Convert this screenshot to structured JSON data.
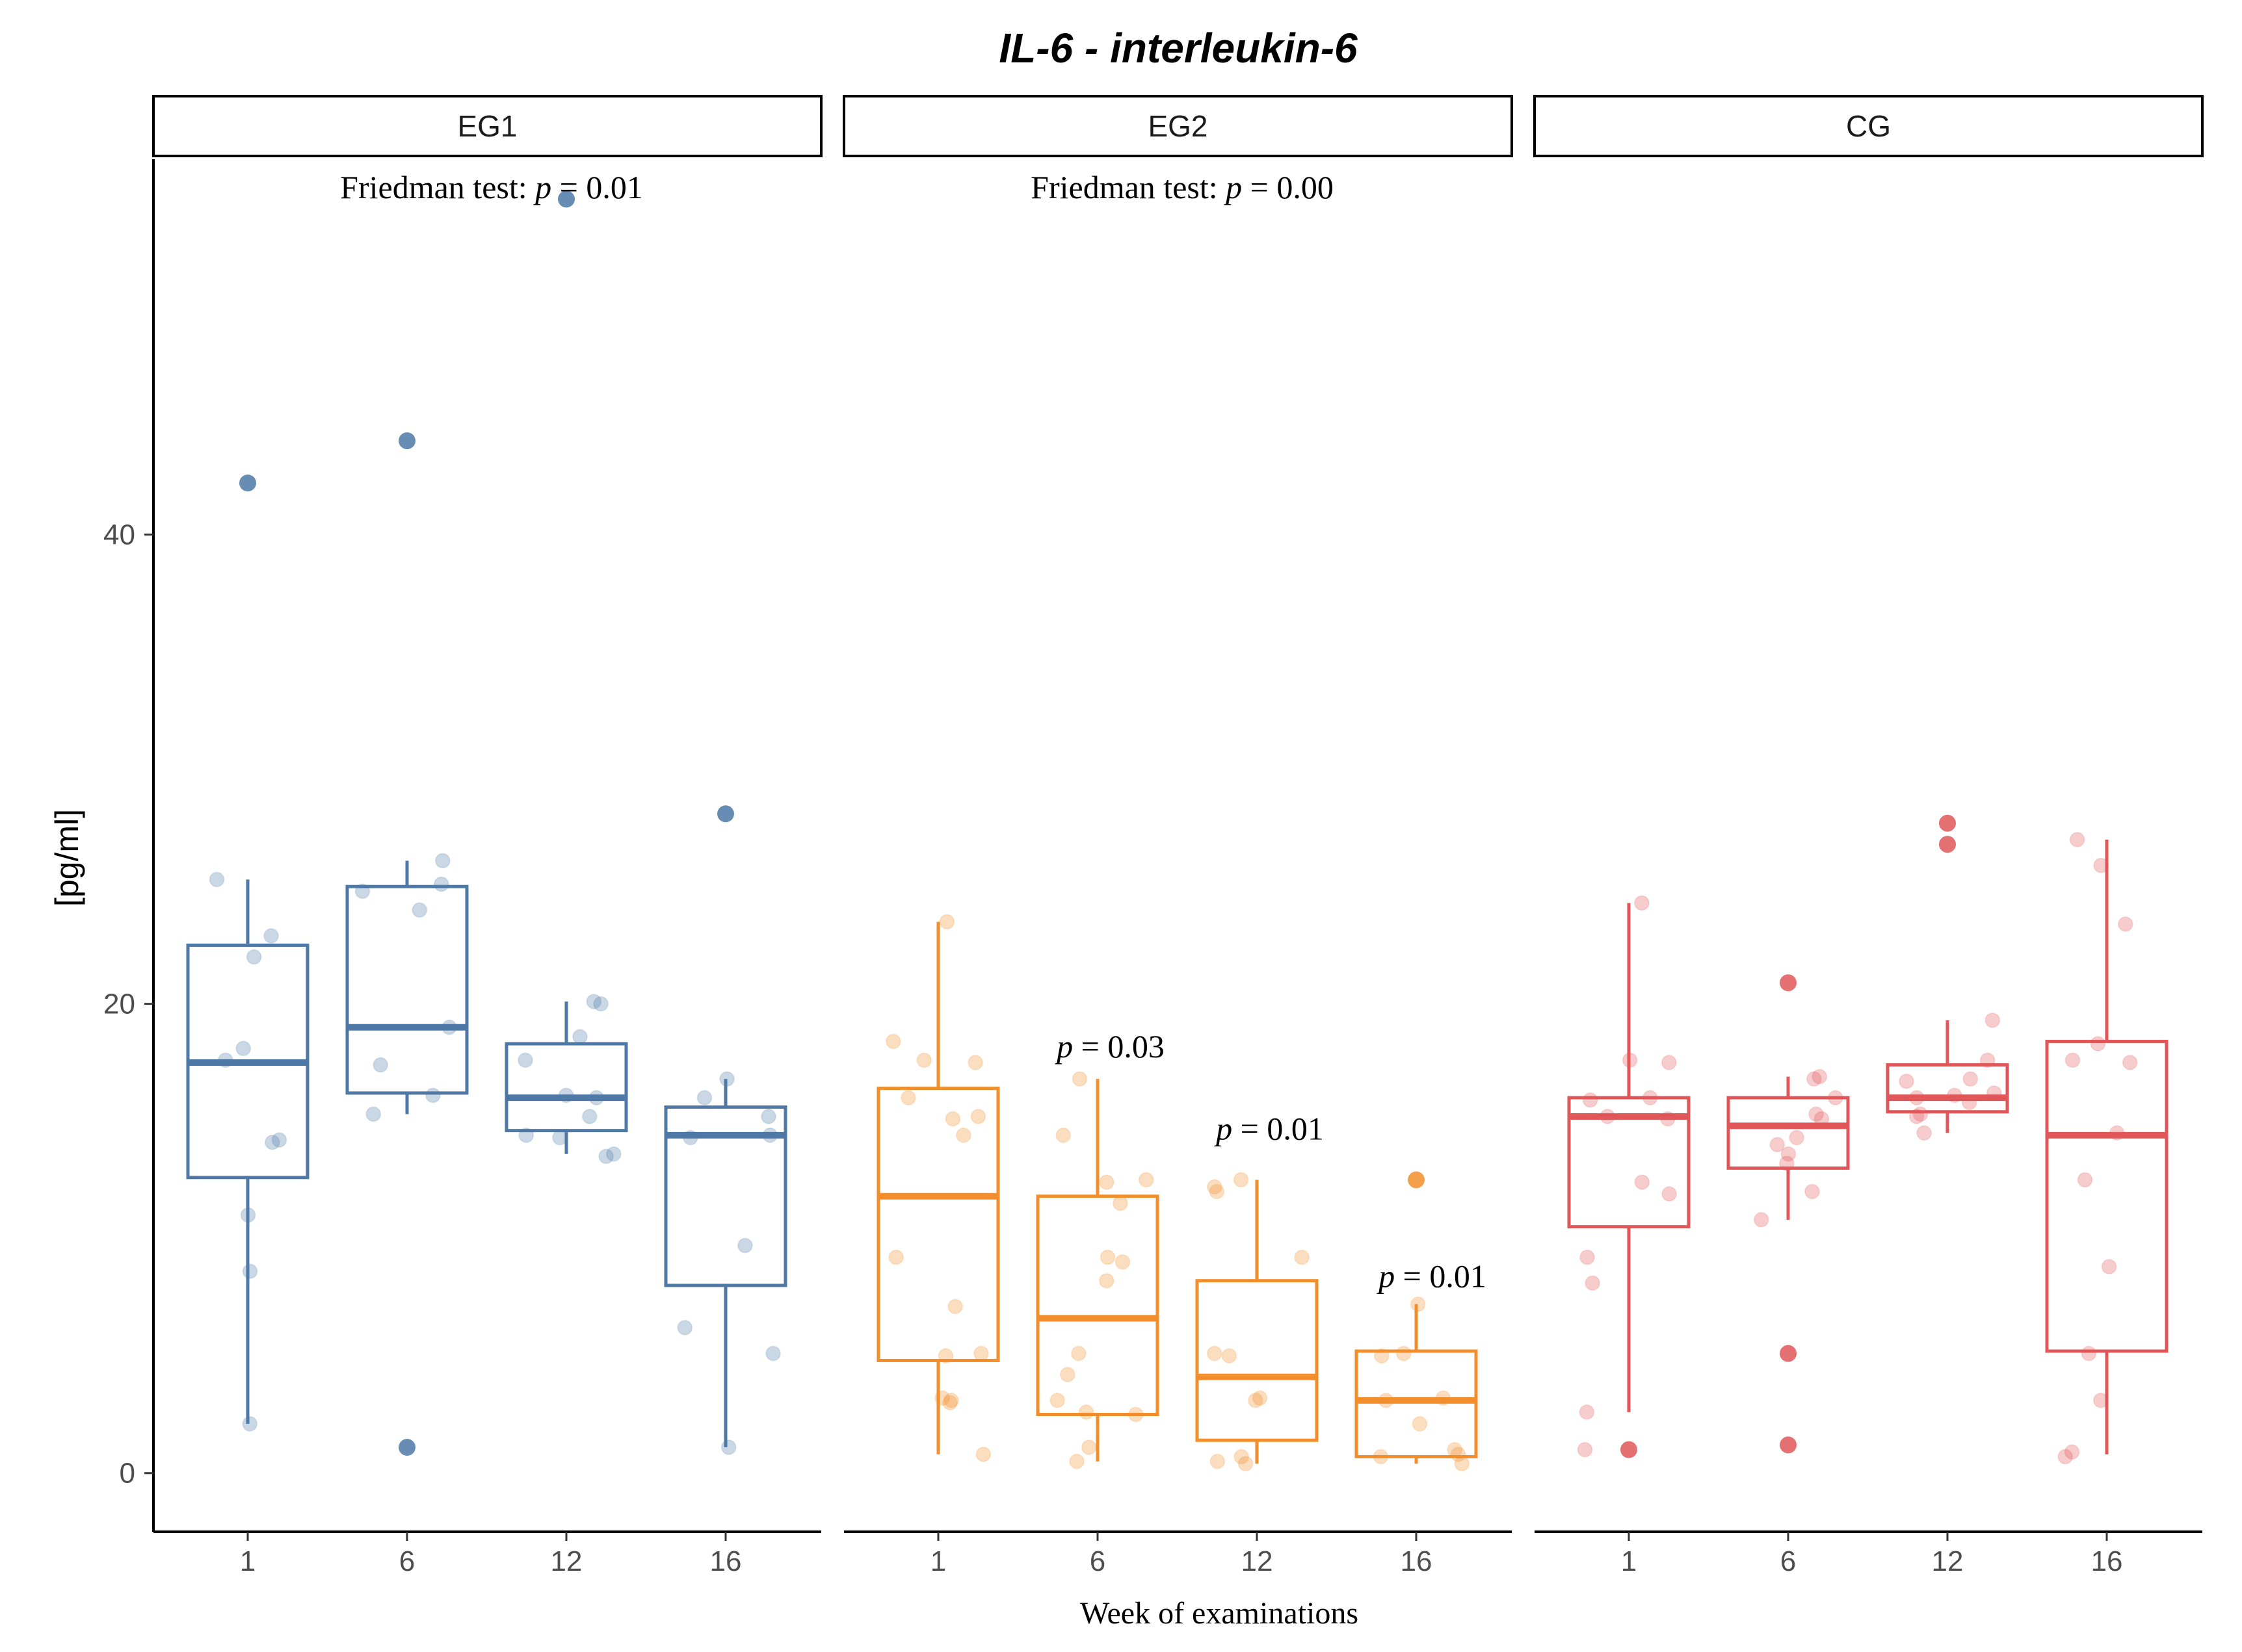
{
  "chart_data": {
    "type": "boxplot",
    "title": "IL-6 - interleukin-6",
    "xlabel": "Week of examinations",
    "ylabel": "[pg/ml]",
    "ylim": [
      -2.5,
      56
    ],
    "yticks": [
      0,
      20,
      40
    ],
    "categories": [
      "1",
      "6",
      "12",
      "16"
    ],
    "stat_prefix": "Friedman test: ",
    "p_symbol": "p",
    "p_equals": " = ",
    "panels": [
      {
        "name": "EG1",
        "color": "#4e79a7",
        "friedman_p": "0.01",
        "boxes": [
          {
            "week": "1",
            "q1": 12.6,
            "median": 17.5,
            "q3": 22.5,
            "whisker_low": 2.1,
            "whisker_high": 25.3
          },
          {
            "week": "6",
            "q1": 16.2,
            "median": 19.0,
            "q3": 25.0,
            "whisker_low": 15.3,
            "whisker_high": 26.1
          },
          {
            "week": "12",
            "q1": 14.6,
            "median": 16.0,
            "q3": 18.3,
            "whisker_low": 13.6,
            "whisker_high": 20.1
          },
          {
            "week": "16",
            "q1": 8.0,
            "median": 14.4,
            "q3": 15.6,
            "whisker_low": 1.1,
            "whisker_high": 16.8
          }
        ],
        "outliers": [
          {
            "week": "1",
            "values": [
              42.2
            ]
          },
          {
            "week": "6",
            "values": [
              44.0,
              1.1
            ]
          },
          {
            "week": "12",
            "values": [
              54.3
            ]
          },
          {
            "week": "16",
            "values": [
              28.1
            ]
          }
        ],
        "points": [
          {
            "week": "1",
            "values": [
              25.3,
              22.9,
              22.0,
              18.1,
              17.6,
              14.2,
              14.1,
              11.0,
              8.6,
              2.1
            ]
          },
          {
            "week": "6",
            "values": [
              26.1,
              25.1,
              24.8,
              24.0,
              19.0,
              17.4,
              16.1,
              15.3
            ]
          },
          {
            "week": "12",
            "values": [
              20.1,
              20.0,
              18.6,
              17.6,
              16.1,
              16.0,
              15.2,
              14.4,
              14.3,
              13.6,
              13.5
            ]
          },
          {
            "week": "16",
            "values": [
              16.8,
              16.0,
              15.2,
              14.4,
              14.3,
              9.7,
              6.2,
              5.1,
              1.1
            ]
          }
        ],
        "pairwise": []
      },
      {
        "name": "EG2",
        "color": "#f28e2b",
        "friedman_p": "0.00",
        "boxes": [
          {
            "week": "1",
            "q1": 4.8,
            "median": 11.8,
            "q3": 16.4,
            "whisker_low": 0.8,
            "whisker_high": 23.5
          },
          {
            "week": "6",
            "q1": 2.5,
            "median": 6.6,
            "q3": 11.8,
            "whisker_low": 0.5,
            "whisker_high": 16.8
          },
          {
            "week": "12",
            "q1": 1.4,
            "median": 4.1,
            "q3": 8.2,
            "whisker_low": 0.4,
            "whisker_high": 12.5
          },
          {
            "week": "16",
            "q1": 0.7,
            "median": 3.1,
            "q3": 5.2,
            "whisker_low": 0.4,
            "whisker_high": 7.2
          }
        ],
        "outliers": [
          {
            "week": "16",
            "values": [
              12.5
            ]
          }
        ],
        "points": [
          {
            "week": "1",
            "values": [
              23.5,
              18.4,
              17.6,
              17.5,
              16.0,
              15.2,
              15.1,
              14.4,
              9.2,
              7.1,
              5.1,
              5.0,
              3.2,
              3.1,
              3.0,
              0.8
            ]
          },
          {
            "week": "6",
            "values": [
              16.8,
              14.4,
              12.5,
              12.4,
              11.5,
              9.2,
              9.0,
              8.2,
              5.1,
              4.2,
              3.1,
              2.6,
              2.5,
              1.1,
              0.5
            ]
          },
          {
            "week": "12",
            "values": [
              12.5,
              12.2,
              12.0,
              9.2,
              5.1,
              5.0,
              3.2,
              3.1,
              0.7,
              0.5,
              0.4
            ]
          },
          {
            "week": "16",
            "values": [
              7.2,
              5.1,
              5.0,
              3.2,
              3.1,
              2.1,
              1.0,
              0.8,
              0.7,
              0.4
            ]
          }
        ],
        "pairwise": [
          {
            "week": "6",
            "p": "0.03",
            "y": 18.0
          },
          {
            "week": "12",
            "p": "0.01",
            "y": 14.5
          },
          {
            "week": "16",
            "p": "0.01",
            "y": 8.2
          }
        ]
      },
      {
        "name": "CG",
        "color": "#e15759",
        "friedman_p": null,
        "boxes": [
          {
            "week": "1",
            "q1": 10.5,
            "median": 15.2,
            "q3": 16.0,
            "whisker_low": 2.6,
            "whisker_high": 24.3
          },
          {
            "week": "6",
            "q1": 13.0,
            "median": 14.8,
            "q3": 16.0,
            "whisker_low": 10.8,
            "whisker_high": 16.9
          },
          {
            "week": "12",
            "q1": 15.4,
            "median": 16.0,
            "q3": 17.4,
            "whisker_low": 14.5,
            "whisker_high": 19.3
          },
          {
            "week": "16",
            "q1": 5.2,
            "median": 14.4,
            "q3": 18.4,
            "whisker_low": 0.8,
            "whisker_high": 27.0
          }
        ],
        "outliers": [
          {
            "week": "1",
            "values": [
              1.0
            ]
          },
          {
            "week": "6",
            "values": [
              20.9,
              5.1,
              1.2
            ]
          },
          {
            "week": "12",
            "values": [
              27.7,
              26.8
            ]
          }
        ],
        "points": [
          {
            "week": "1",
            "values": [
              24.3,
              17.6,
              17.5,
              16.0,
              15.9,
              15.2,
              15.1,
              12.4,
              11.9,
              9.2,
              8.1,
              2.6,
              1.0
            ]
          },
          {
            "week": "6",
            "values": [
              16.9,
              16.8,
              16.0,
              15.3,
              15.1,
              14.3,
              14.0,
              13.6,
              13.2,
              12.0,
              10.8
            ]
          },
          {
            "week": "12",
            "values": [
              19.3,
              17.6,
              16.8,
              16.7,
              16.2,
              16.1,
              16.0,
              15.8,
              15.3,
              15.2,
              14.5
            ]
          },
          {
            "week": "16",
            "values": [
              27.0,
              25.9,
              23.4,
              18.3,
              17.6,
              17.5,
              14.5,
              12.5,
              8.8,
              5.1,
              3.1,
              0.9,
              0.7
            ]
          }
        ],
        "pairwise": []
      }
    ]
  }
}
